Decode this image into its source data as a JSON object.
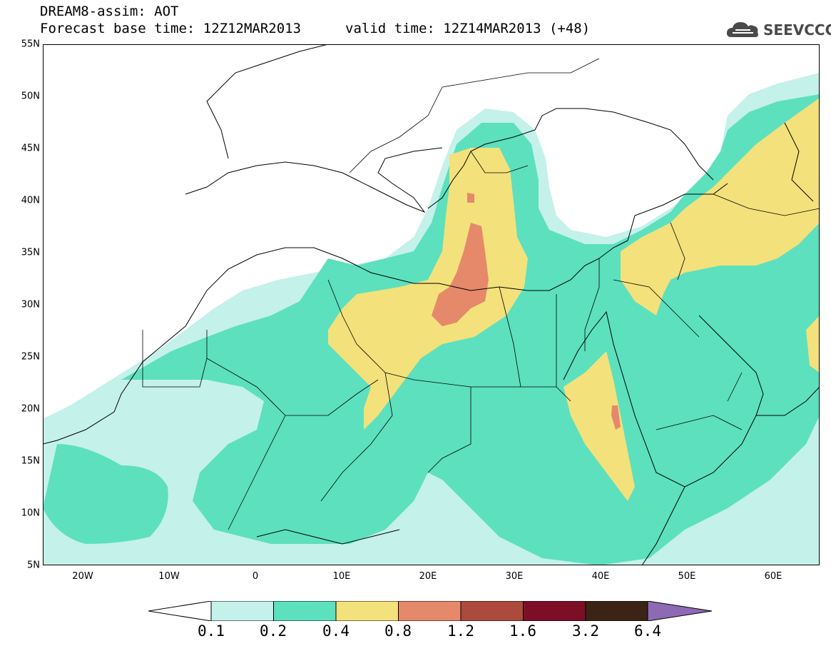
{
  "header": {
    "title": "DREAM8-assim: AOT",
    "base_time": "Forecast base time: 12Z12MAR2013",
    "valid_time": "valid time: 12Z14MAR2013 (+48)",
    "logo_text": "SEEVCCC"
  },
  "axes": {
    "lat_labels": [
      "55N",
      "50N",
      "45N",
      "40N",
      "35N",
      "30N",
      "25N",
      "20N",
      "15N",
      "10N",
      "5N"
    ],
    "lon_labels": [
      "20W",
      "10W",
      "0",
      "10E",
      "20E",
      "30E",
      "40E",
      "50E",
      "60E"
    ],
    "lon_range": [
      -25,
      65
    ],
    "lat_range": [
      5,
      55
    ]
  },
  "colorbar": {
    "levels": [
      "0.1",
      "0.2",
      "0.4",
      "0.8",
      "1.2",
      "1.6",
      "3.2",
      "6.4"
    ],
    "colors": [
      "#c4f1ea",
      "#5de0bd",
      "#f3e17c",
      "#e5896a",
      "#ad4a3e",
      "#7c0f25",
      "#3b2416",
      "#8e6ab5"
    ]
  },
  "map": {
    "field": "AOT",
    "level_colors": {
      "very_low": "#c4f1ea",
      "low": "#5de0bd",
      "mid": "#f3e17c",
      "high": "#e5896a"
    }
  }
}
